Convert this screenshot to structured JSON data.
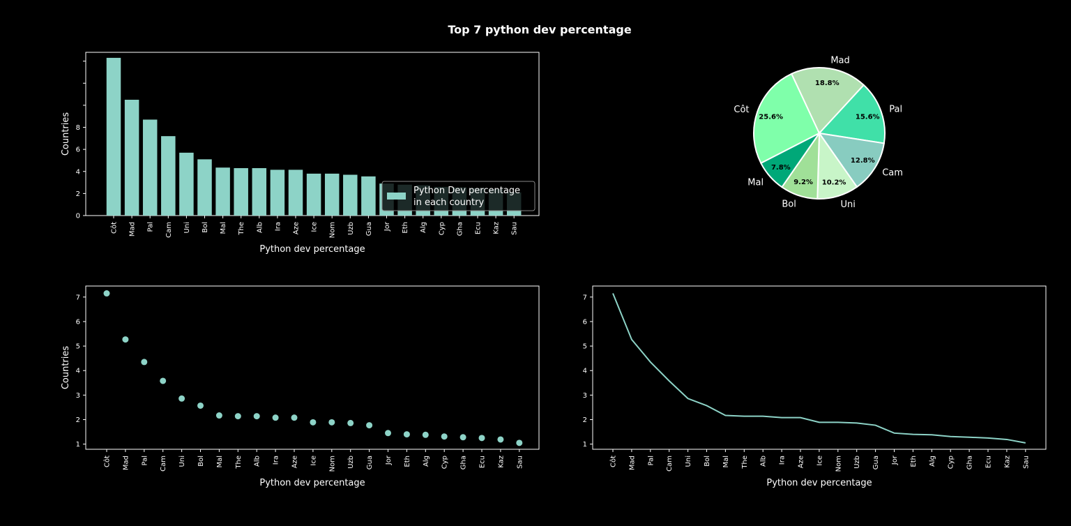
{
  "figure": {
    "title": "Top 7 python dev percentage"
  },
  "colors": {
    "background": "#000000",
    "foreground": "#ffffff",
    "series": "#8dd3c7",
    "pie": [
      "#7fffaa",
      "#b0e0b0",
      "#40e0a8",
      "#88ccc0",
      "#c8f5c8",
      "#a0e098",
      "#00a878"
    ]
  },
  "chart_data": [
    {
      "type": "bar",
      "categories": [
        "Côt",
        "Mad",
        "Pal",
        "Cam",
        "Uni",
        "Bol",
        "Mal",
        "The",
        "Alb",
        "Ira",
        "Aze",
        "Ice",
        "Nom",
        "Uzb",
        "Gua",
        "Jor",
        "Eth",
        "Alg",
        "Cyp",
        "Gha",
        "Ecu",
        "Kaz",
        "Sau"
      ],
      "values": [
        14.3,
        10.5,
        8.7,
        7.2,
        5.7,
        5.1,
        4.35,
        4.3,
        4.3,
        4.15,
        4.15,
        3.8,
        3.8,
        3.7,
        3.55,
        2.9,
        2.8,
        2.75,
        2.6,
        2.55,
        2.5,
        2.4,
        2.1
      ],
      "xlabel": "Python dev percentage",
      "ylabel": "Countries",
      "yticks": [
        "0",
        "2",
        "4",
        "6",
        "8",
        "",
        "",
        ""
      ],
      "ylim": [
        0,
        14.8
      ],
      "legend": {
        "label_line1": "Python Dev percentage",
        "label_line2": "in each country",
        "placement": "lower right"
      }
    },
    {
      "type": "pie",
      "labels": [
        "Côt",
        "Mad",
        "Pal",
        "Cam",
        "Uni",
        "Bol",
        "Mal"
      ],
      "percent_labels": [
        "25.6%",
        "18.8%",
        "15.6%",
        "12.8%",
        "10.2%",
        "9.2%",
        "7.8%"
      ],
      "values": [
        25.6,
        18.8,
        15.6,
        12.8,
        10.2,
        9.2,
        7.8
      ]
    },
    {
      "type": "scatter",
      "categories": [
        "Côt",
        "Mad",
        "Pal",
        "Cam",
        "Uni",
        "Bol",
        "Mal",
        "The",
        "Alb",
        "Ira",
        "Aze",
        "Ice",
        "Nom",
        "Uzb",
        "Gua",
        "Jor",
        "Eth",
        "Alg",
        "Cyp",
        "Gha",
        "Ecu",
        "Kaz",
        "Sau"
      ],
      "values": [
        7.15,
        5.27,
        4.35,
        3.58,
        2.86,
        2.57,
        2.17,
        2.14,
        2.14,
        2.08,
        2.08,
        1.89,
        1.89,
        1.86,
        1.77,
        1.45,
        1.4,
        1.38,
        1.31,
        1.28,
        1.25,
        1.19,
        1.05
      ],
      "xlabel": "Python dev percentage",
      "ylabel": "Countries",
      "yticks": [
        "1",
        "2",
        "3",
        "4",
        "5",
        "6",
        "7"
      ],
      "ylim": [
        0.79,
        7.45
      ]
    },
    {
      "type": "line",
      "categories": [
        "Côt",
        "Mad",
        "Pal",
        "Cam",
        "Uni",
        "Bol",
        "Mal",
        "The",
        "Alb",
        "Ira",
        "Aze",
        "Ice",
        "Nom",
        "Uzb",
        "Gua",
        "Jor",
        "Eth",
        "Alg",
        "Cyp",
        "Gha",
        "Ecu",
        "Kaz",
        "Sau"
      ],
      "values": [
        7.15,
        5.27,
        4.35,
        3.58,
        2.86,
        2.57,
        2.17,
        2.14,
        2.14,
        2.08,
        2.08,
        1.89,
        1.89,
        1.86,
        1.77,
        1.45,
        1.4,
        1.38,
        1.31,
        1.28,
        1.25,
        1.19,
        1.05
      ],
      "xlabel": "Python dev percentage",
      "yticks": [
        "1",
        "2",
        "3",
        "4",
        "5",
        "6",
        "7"
      ],
      "ylim": [
        0.79,
        7.45
      ]
    }
  ]
}
